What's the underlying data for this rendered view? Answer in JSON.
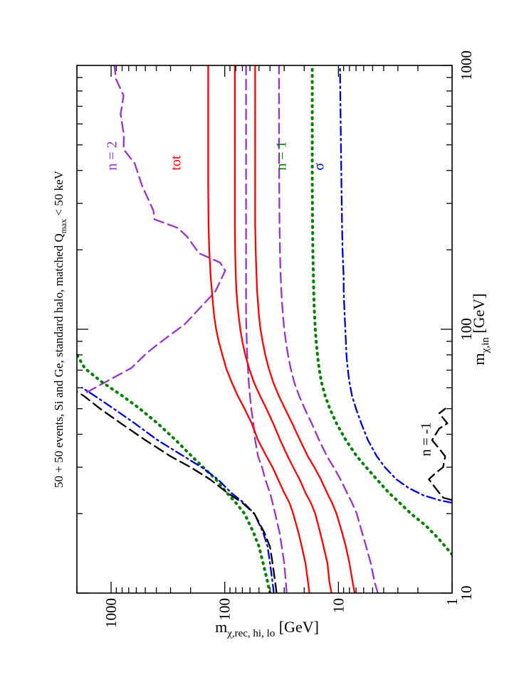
{
  "chart_data": {
    "type": "line",
    "title": "50 + 50 events, Si and Ge, standard halo, matched Q_max < 50 keV",
    "title_parts": {
      "main": "50 + 50 events, Si and Ge, standard halo, matched Q",
      "sub": "max",
      "tail": " < 50 keV"
    },
    "xlabel": "m_χ,in [GeV]",
    "xlabel_parts": {
      "main": "m",
      "sub": "χ,in",
      "tail": " [GeV]"
    },
    "ylabel": "m_χ,rec, hi, lo [GeV]",
    "ylabel_parts": {
      "main": "m",
      "sub": "χ,rec, hi, lo",
      "tail": " [GeV]"
    },
    "xscale": "log",
    "yscale": "log",
    "xlim": [
      10,
      1000
    ],
    "ylim": [
      1,
      2000
    ],
    "xticks": [
      10,
      100,
      1000
    ],
    "xtick_labels": [
      "10",
      "100",
      "1000"
    ],
    "yticks": [
      1,
      10,
      100,
      1000
    ],
    "ytick_labels": [
      "1",
      "10",
      "100",
      "1000"
    ],
    "grid": false,
    "orientation": "rotated 90 degrees counter-clockwise",
    "series": [
      {
        "name": "n = 2 hi",
        "style": "dashed",
        "color": "#9932cc",
        "x": [
          57.7,
          64.8,
          71.4,
          80.6,
          86.8,
          104.5,
          139,
          167,
          179,
          194,
          224,
          242,
          261,
          282,
          322,
          350,
          425,
          481,
          546,
          653,
          768,
          888,
          1000
        ],
        "y": [
          1635,
          1000,
          661,
          495,
          401,
          225,
          121,
          99,
          110,
          168,
          214,
          258,
          416,
          425,
          489,
          534,
          620,
          777,
          772,
          825,
          776,
          906,
          935
        ]
      },
      {
        "name": "n = 2 lo",
        "style": "dashed",
        "color": "#9932cc",
        "x": [
          10,
          11,
          13,
          15,
          17,
          20,
          22,
          24,
          27,
          30,
          33,
          38,
          44,
          50,
          56,
          63,
          71,
          80,
          90,
          100,
          112,
          125,
          141,
          158,
          178,
          200,
          250,
          350,
          500,
          700,
          1000
        ],
        "y": [
          28.5,
          29,
          30,
          31.5,
          33,
          36,
          38,
          40,
          44,
          47,
          51,
          54,
          56,
          58.5,
          60,
          61.5,
          62.5,
          63.5,
          64,
          64.5,
          65,
          65,
          65,
          65,
          65,
          65,
          65,
          65,
          65,
          65,
          65
        ]
      },
      {
        "name": "tot hi",
        "style": "solid",
        "color": "#ff0000",
        "x": [
          10,
          11,
          13,
          15,
          17,
          20,
          22,
          24,
          27,
          30,
          33,
          38,
          44,
          50,
          56,
          63,
          71,
          80,
          90,
          100,
          112,
          125,
          141,
          158,
          178,
          200,
          250,
          350,
          500,
          700,
          1000
        ],
        "y": [
          18,
          18.5,
          19.5,
          21,
          22.5,
          25,
          27,
          30,
          34,
          38,
          43,
          51,
          58,
          67,
          77,
          87,
          97,
          105,
          113,
          119,
          124,
          127,
          130,
          133,
          135,
          137,
          139,
          140,
          140,
          140,
          140
        ]
      },
      {
        "name": "tot band upper",
        "style": "solid",
        "color": "#ff0000",
        "x": [
          10,
          11,
          13,
          15,
          17,
          20,
          22,
          24,
          27,
          30,
          33,
          38,
          44,
          50,
          56,
          63,
          71,
          80,
          90,
          100,
          112,
          125,
          141,
          158,
          178,
          200,
          250,
          350,
          500,
          700,
          1000
        ],
        "y": [
          11.5,
          12,
          12.5,
          13.5,
          14.5,
          16,
          17.5,
          19.5,
          22,
          25,
          28,
          32.5,
          37.5,
          43,
          49,
          55.5,
          61,
          66,
          70,
          73,
          75.5,
          77.5,
          79,
          80,
          80.5,
          81,
          81.5,
          81.5,
          81.5,
          81.5,
          81.5
        ]
      },
      {
        "name": "tot band lower",
        "style": "solid",
        "color": "#ff0000",
        "x": [
          10,
          11,
          13,
          15,
          17,
          20,
          22,
          24,
          27,
          30,
          33,
          38,
          44,
          50,
          56,
          63,
          71,
          80,
          90,
          100,
          112,
          125,
          141,
          158,
          178,
          200,
          250,
          350,
          500,
          700,
          1000
        ],
        "y": [
          7.2,
          7.5,
          8,
          8.6,
          9.3,
          10.4,
          11.4,
          12.6,
          14.3,
          16.3,
          18.6,
          21.8,
          25.5,
          29.5,
          33.5,
          37.5,
          41,
          44,
          46.5,
          48.5,
          50,
          51,
          52,
          52.5,
          53,
          53.5,
          54,
          54,
          54,
          54,
          54
        ]
      },
      {
        "name": "n = 2 low",
        "style": "dashed",
        "color": "#9932cc",
        "x": [
          10,
          11,
          13,
          15,
          17,
          20,
          22,
          24,
          27,
          30,
          33,
          38,
          44,
          50,
          56,
          63,
          71,
          80,
          90,
          100,
          112,
          125,
          141,
          158,
          178,
          200,
          250,
          350,
          500,
          700,
          1000
        ],
        "y": [
          4.5,
          4.8,
          5.2,
          5.7,
          6.2,
          6.9,
          7.6,
          8.4,
          9.6,
          11,
          12.6,
          14.8,
          17.2,
          19.8,
          22.2,
          24.5,
          26.3,
          27.8,
          29,
          30,
          30.7,
          31.3,
          31.8,
          32.2,
          32.5,
          32.7,
          33,
          33.2,
          33.3,
          33.3,
          33.3
        ]
      },
      {
        "name": "n = 1 hi",
        "style": "dotted",
        "color": "#008000",
        "x": [
          10,
          11,
          13,
          15,
          17,
          20,
          22,
          24,
          27,
          30,
          33,
          38,
          44,
          50,
          56,
          63,
          71,
          80
        ],
        "y": [
          40,
          42,
          46,
          50,
          56,
          67,
          80,
          96,
          120,
          155,
          195,
          270,
          390,
          560,
          800,
          1200,
          1700,
          2000
        ]
      },
      {
        "name": "n = 1 lo",
        "style": "dotted",
        "color": "#008000",
        "x": [
          14,
          16,
          18,
          20,
          22,
          24,
          27,
          30,
          33,
          38,
          44,
          50,
          56,
          63,
          71,
          80,
          90,
          100,
          112,
          125,
          141,
          158,
          178,
          200,
          250,
          350,
          500,
          700,
          1000
        ],
        "y": [
          1,
          1.3,
          1.7,
          2.3,
          2.9,
          3.6,
          4.6,
          5.7,
          6.9,
          8.6,
          10.4,
          11.9,
          13.1,
          14.1,
          14.8,
          15.3,
          15.7,
          16,
          16.2,
          16.4,
          16.5,
          16.6,
          16.7,
          16.8,
          16.9,
          17,
          17,
          17,
          17
        ]
      },
      {
        "name": "sigma hi",
        "style": "dashdot",
        "color": "#0000cd",
        "x": [
          10,
          11,
          13,
          15,
          17,
          20,
          22,
          24,
          27,
          30,
          33,
          38,
          44,
          50,
          56,
          60
        ],
        "y": [
          37,
          38,
          40,
          42,
          46,
          55,
          68,
          88,
          115,
          160,
          230,
          390,
          620,
          950,
          1400,
          1800
        ]
      },
      {
        "name": "sigma lo",
        "style": "dashdot",
        "color": "#0000cd",
        "x": [
          22,
          22.5,
          23.5,
          25,
          27,
          30,
          33,
          38,
          44,
          50,
          56,
          63,
          71,
          80,
          90,
          100,
          112,
          125,
          141,
          158,
          178,
          200,
          250,
          350,
          500,
          700,
          1000
        ],
        "y": [
          1,
          1.3,
          1.8,
          2.4,
          3.1,
          3.9,
          4.6,
          5.5,
          6.3,
          7,
          7.6,
          8,
          8.3,
          8.5,
          8.6,
          8.7,
          8.8,
          8.9,
          9,
          9,
          9.1,
          9.2,
          9.3,
          9.4,
          9.5,
          9.6,
          9.7
        ]
      },
      {
        "name": "n = -1 hi",
        "style": "dashed",
        "color": "#000000",
        "x": [
          10,
          11,
          13,
          15,
          17,
          20,
          22,
          24,
          27,
          30,
          33,
          38,
          44,
          50,
          56,
          58
        ],
        "y": [
          35,
          36,
          38,
          40,
          45,
          55,
          70,
          95,
          135,
          200,
          300,
          500,
          820,
          1250,
          1750,
          2000
        ]
      },
      {
        "name": "n = -1 lo",
        "style": "dashed",
        "color": "#000000",
        "x": [
          22.5,
          23,
          25,
          27,
          28.5,
          30,
          33,
          36,
          38,
          42,
          44,
          48,
          50
        ],
        "y": [
          1,
          1.2,
          1.4,
          1.6,
          1.4,
          1.2,
          1.15,
          1.35,
          1.5,
          1.3,
          1.1,
          1.3,
          1.15
        ]
      }
    ],
    "annotations": [
      {
        "text": "n = 2",
        "color": "#9932cc",
        "x": 400,
        "y": 900
      },
      {
        "text": "tot",
        "color": "#ff0000",
        "x": 400,
        "y": 245
      },
      {
        "text": "n = 1",
        "color": "#008000",
        "x": 400,
        "y": 29
      },
      {
        "text": "σ",
        "color": "#0000cd",
        "x": 400,
        "y": 13.5
      },
      {
        "text": "n = -1",
        "color": "#000000",
        "x": 33,
        "y": 1.55
      }
    ]
  }
}
